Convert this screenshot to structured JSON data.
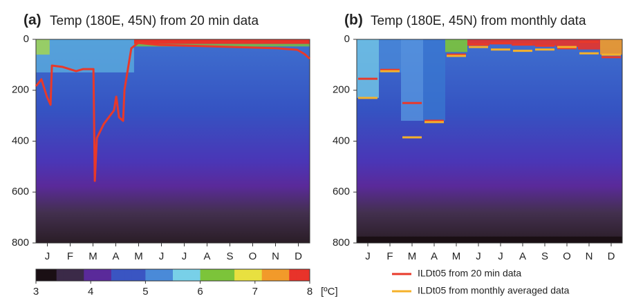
{
  "chart_data": [
    {
      "type": "line",
      "panel_label": "(a)",
      "title": "Temp (180E, 45N) from 20 min data",
      "xlim": [
        0,
        12
      ],
      "xticks": [
        {
          "value": 0.5,
          "label": "J"
        },
        {
          "value": 1.5,
          "label": "F"
        },
        {
          "value": 2.5,
          "label": "M"
        },
        {
          "value": 3.5,
          "label": "A"
        },
        {
          "value": 4.5,
          "label": "M"
        },
        {
          "value": 5.5,
          "label": "J"
        },
        {
          "value": 6.5,
          "label": "J"
        },
        {
          "value": 7.5,
          "label": "A"
        },
        {
          "value": 8.5,
          "label": "S"
        },
        {
          "value": 9.5,
          "label": "O"
        },
        {
          "value": 10.5,
          "label": "N"
        },
        {
          "value": 11.5,
          "label": "D"
        }
      ],
      "ylim": [
        800,
        0
      ],
      "yticks": [
        0,
        200,
        400,
        600,
        800
      ],
      "series": [
        {
          "color": "#e8392a",
          "x": [
            0,
            0.24,
            0.48,
            0.64,
            0.7,
            1.15,
            1.76,
            2.06,
            2.52,
            2.58,
            2.67,
            2.97,
            3.42,
            3.52,
            3.64,
            3.82,
            3.88,
            4.03,
            4.18,
            4.48,
            5.39,
            7.52,
            10.55,
            11.45,
            11.76,
            12
          ],
          "values": [
            184,
            157,
            225,
            257,
            103,
            108,
            125,
            117,
            117,
            556,
            388,
            333,
            279,
            225,
            306,
            320,
            198,
            117,
            35,
            14,
            22,
            27,
            35,
            41,
            57,
            76
          ]
        }
      ],
      "colorbar": {
        "lim": [
          3,
          8
        ],
        "ticks": [
          3,
          4,
          5,
          6,
          7,
          8
        ],
        "label": "[ºC]"
      }
    },
    {
      "type": "dash",
      "panel_label": "(b)",
      "title": "Temp (180E, 45N) from monthly data",
      "xlim": [
        0,
        12
      ],
      "xticks": [
        {
          "value": 0.5,
          "label": "J"
        },
        {
          "value": 1.5,
          "label": "F"
        },
        {
          "value": 2.5,
          "label": "M"
        },
        {
          "value": 3.5,
          "label": "A"
        },
        {
          "value": 4.5,
          "label": "M"
        },
        {
          "value": 5.5,
          "label": "J"
        },
        {
          "value": 6.5,
          "label": "J"
        },
        {
          "value": 7.5,
          "label": "A"
        },
        {
          "value": 8.5,
          "label": "S"
        },
        {
          "value": 9.5,
          "label": "O"
        },
        {
          "value": 10.5,
          "label": "N"
        },
        {
          "value": 11.5,
          "label": "D"
        }
      ],
      "ylim": [
        800,
        0
      ],
      "yticks": [
        0,
        200,
        400,
        600,
        800
      ],
      "series": [
        {
          "name": "ILDt05 from 20 min data",
          "color": "#e8392a",
          "values": [
            155,
            120,
            250,
            320,
            60,
            20,
            15,
            20,
            25,
            35,
            10,
            70
          ]
        },
        {
          "name": "ILDt05 from monthly averaged data",
          "color": "#f5b12a",
          "values": [
            230,
            125,
            385,
            325,
            65,
            30,
            40,
            45,
            40,
            30,
            55,
            60
          ]
        }
      ],
      "legend": "below"
    }
  ]
}
